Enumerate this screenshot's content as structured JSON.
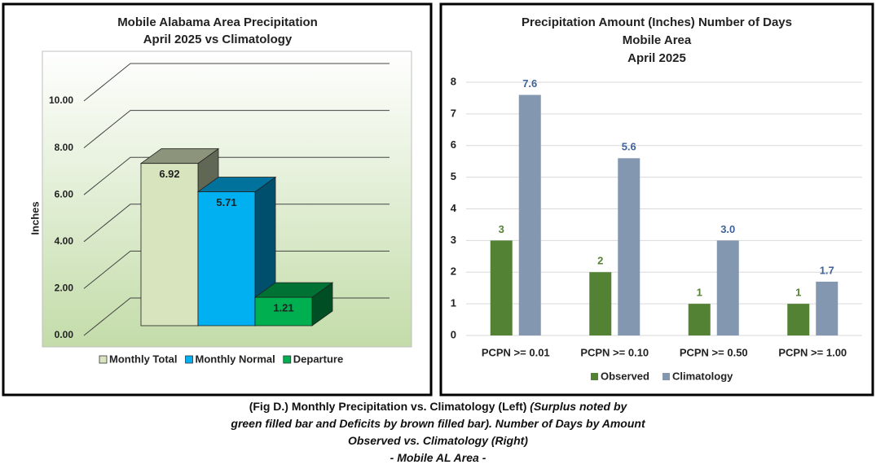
{
  "chart_data": [
    {
      "type": "bar3d",
      "title": "Mobile Alabama Area Precipitation",
      "subtitle": "April 2025 vs Climatology",
      "y_label": "Inches",
      "ylim": [
        0,
        10
      ],
      "yticks": [
        {
          "value": 0,
          "label": "0.00"
        },
        {
          "value": 2,
          "label": "2.00"
        },
        {
          "value": 4,
          "label": "4.00"
        },
        {
          "value": 6,
          "label": "6.00"
        },
        {
          "value": 8,
          "label": "8.00"
        },
        {
          "value": 10,
          "label": "10.00"
        }
      ],
      "grid": true,
      "legend": "bottom",
      "series": [
        {
          "name": "Monthly Total",
          "color": "#d7e4bd",
          "values": [
            6.92
          ]
        },
        {
          "name": "Monthly Normal",
          "color": "#00b0f0",
          "values": [
            5.71
          ]
        },
        {
          "name": "Departure",
          "color": "#00b050",
          "values": [
            1.21
          ]
        }
      ]
    },
    {
      "type": "bar",
      "title": "Precipitation Amount (Inches) Number of Days",
      "subtitle": "Mobile Area",
      "subtitle2": "April 2025",
      "categories": [
        "PCPN >= 0.01",
        "PCPN >= 0.10",
        "PCPN >= 0.50",
        "PCPN >= 1.00"
      ],
      "ylim": [
        0,
        8
      ],
      "yticks": [
        0,
        1,
        2,
        3,
        4,
        5,
        6,
        7,
        8
      ],
      "grid": true,
      "legend": "bottom",
      "series": [
        {
          "name": "Observed",
          "color": "#548235",
          "label_color": "#548235",
          "values": [
            3,
            2,
            1,
            1
          ]
        },
        {
          "name": "Climatology",
          "color": "#8497b0",
          "label_color": "#3f6399",
          "values": [
            7.6,
            5.6,
            3.0,
            1.7
          ],
          "value_labels": [
            "7.6",
            "5.6",
            "3.0",
            "1.7"
          ]
        }
      ]
    }
  ],
  "caption": {
    "line1": "(Fig D.) Monthly Precipitation vs. Climatology (Left)",
    "line1_italic": "(Surplus noted by",
    "line2": "green filled bar and Deficits by brown filled bar). Number of Days by Amount",
    "line3": "Observed vs. Climatology (Right)",
    "line4": "- Mobile AL Area -"
  }
}
